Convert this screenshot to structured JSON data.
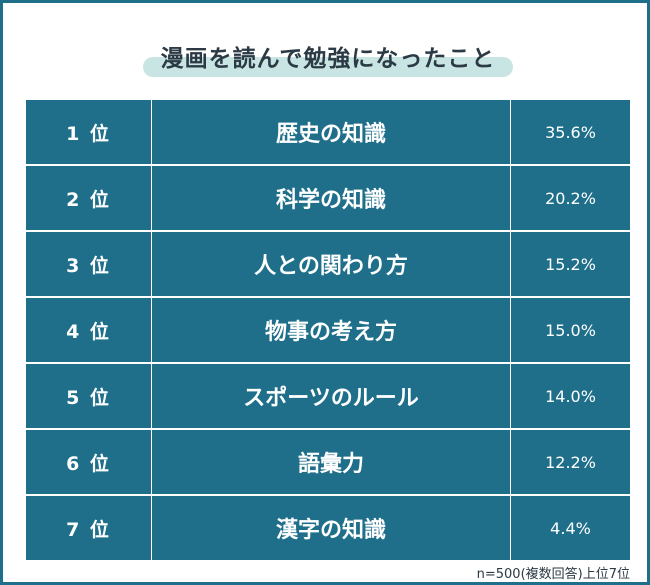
{
  "title": "漫画を読んで勉強になったこと",
  "colors": {
    "table_bg": "#1f6f8b",
    "border": "#1f6f8b",
    "title_highlight": "#c6e4e1",
    "text_dark": "#2b3a44"
  },
  "chart_data": {
    "type": "table",
    "title": "漫画を読んで勉強になったこと",
    "columns": [
      "rank",
      "item",
      "percent"
    ],
    "rows": [
      {
        "rank": "1 位",
        "item": "歴史の知識",
        "percent": "35.6%",
        "value": 35.6
      },
      {
        "rank": "2 位",
        "item": "科学の知識",
        "percent": "20.2%",
        "value": 20.2
      },
      {
        "rank": "3 位",
        "item": "人との関わり方",
        "percent": "15.2%",
        "value": 15.2
      },
      {
        "rank": "4 位",
        "item": "物事の考え方",
        "percent": "15.0%",
        "value": 15.0
      },
      {
        "rank": "5 位",
        "item": "スポーツのルール",
        "percent": "14.0%",
        "value": 14.0
      },
      {
        "rank": "6 位",
        "item": "語彙力",
        "percent": "12.2%",
        "value": 12.2
      },
      {
        "rank": "7 位",
        "item": "漢字の知識",
        "percent": "4.4%",
        "value": 4.4
      }
    ]
  },
  "footnote": "n=500(複数回答)上位7位"
}
